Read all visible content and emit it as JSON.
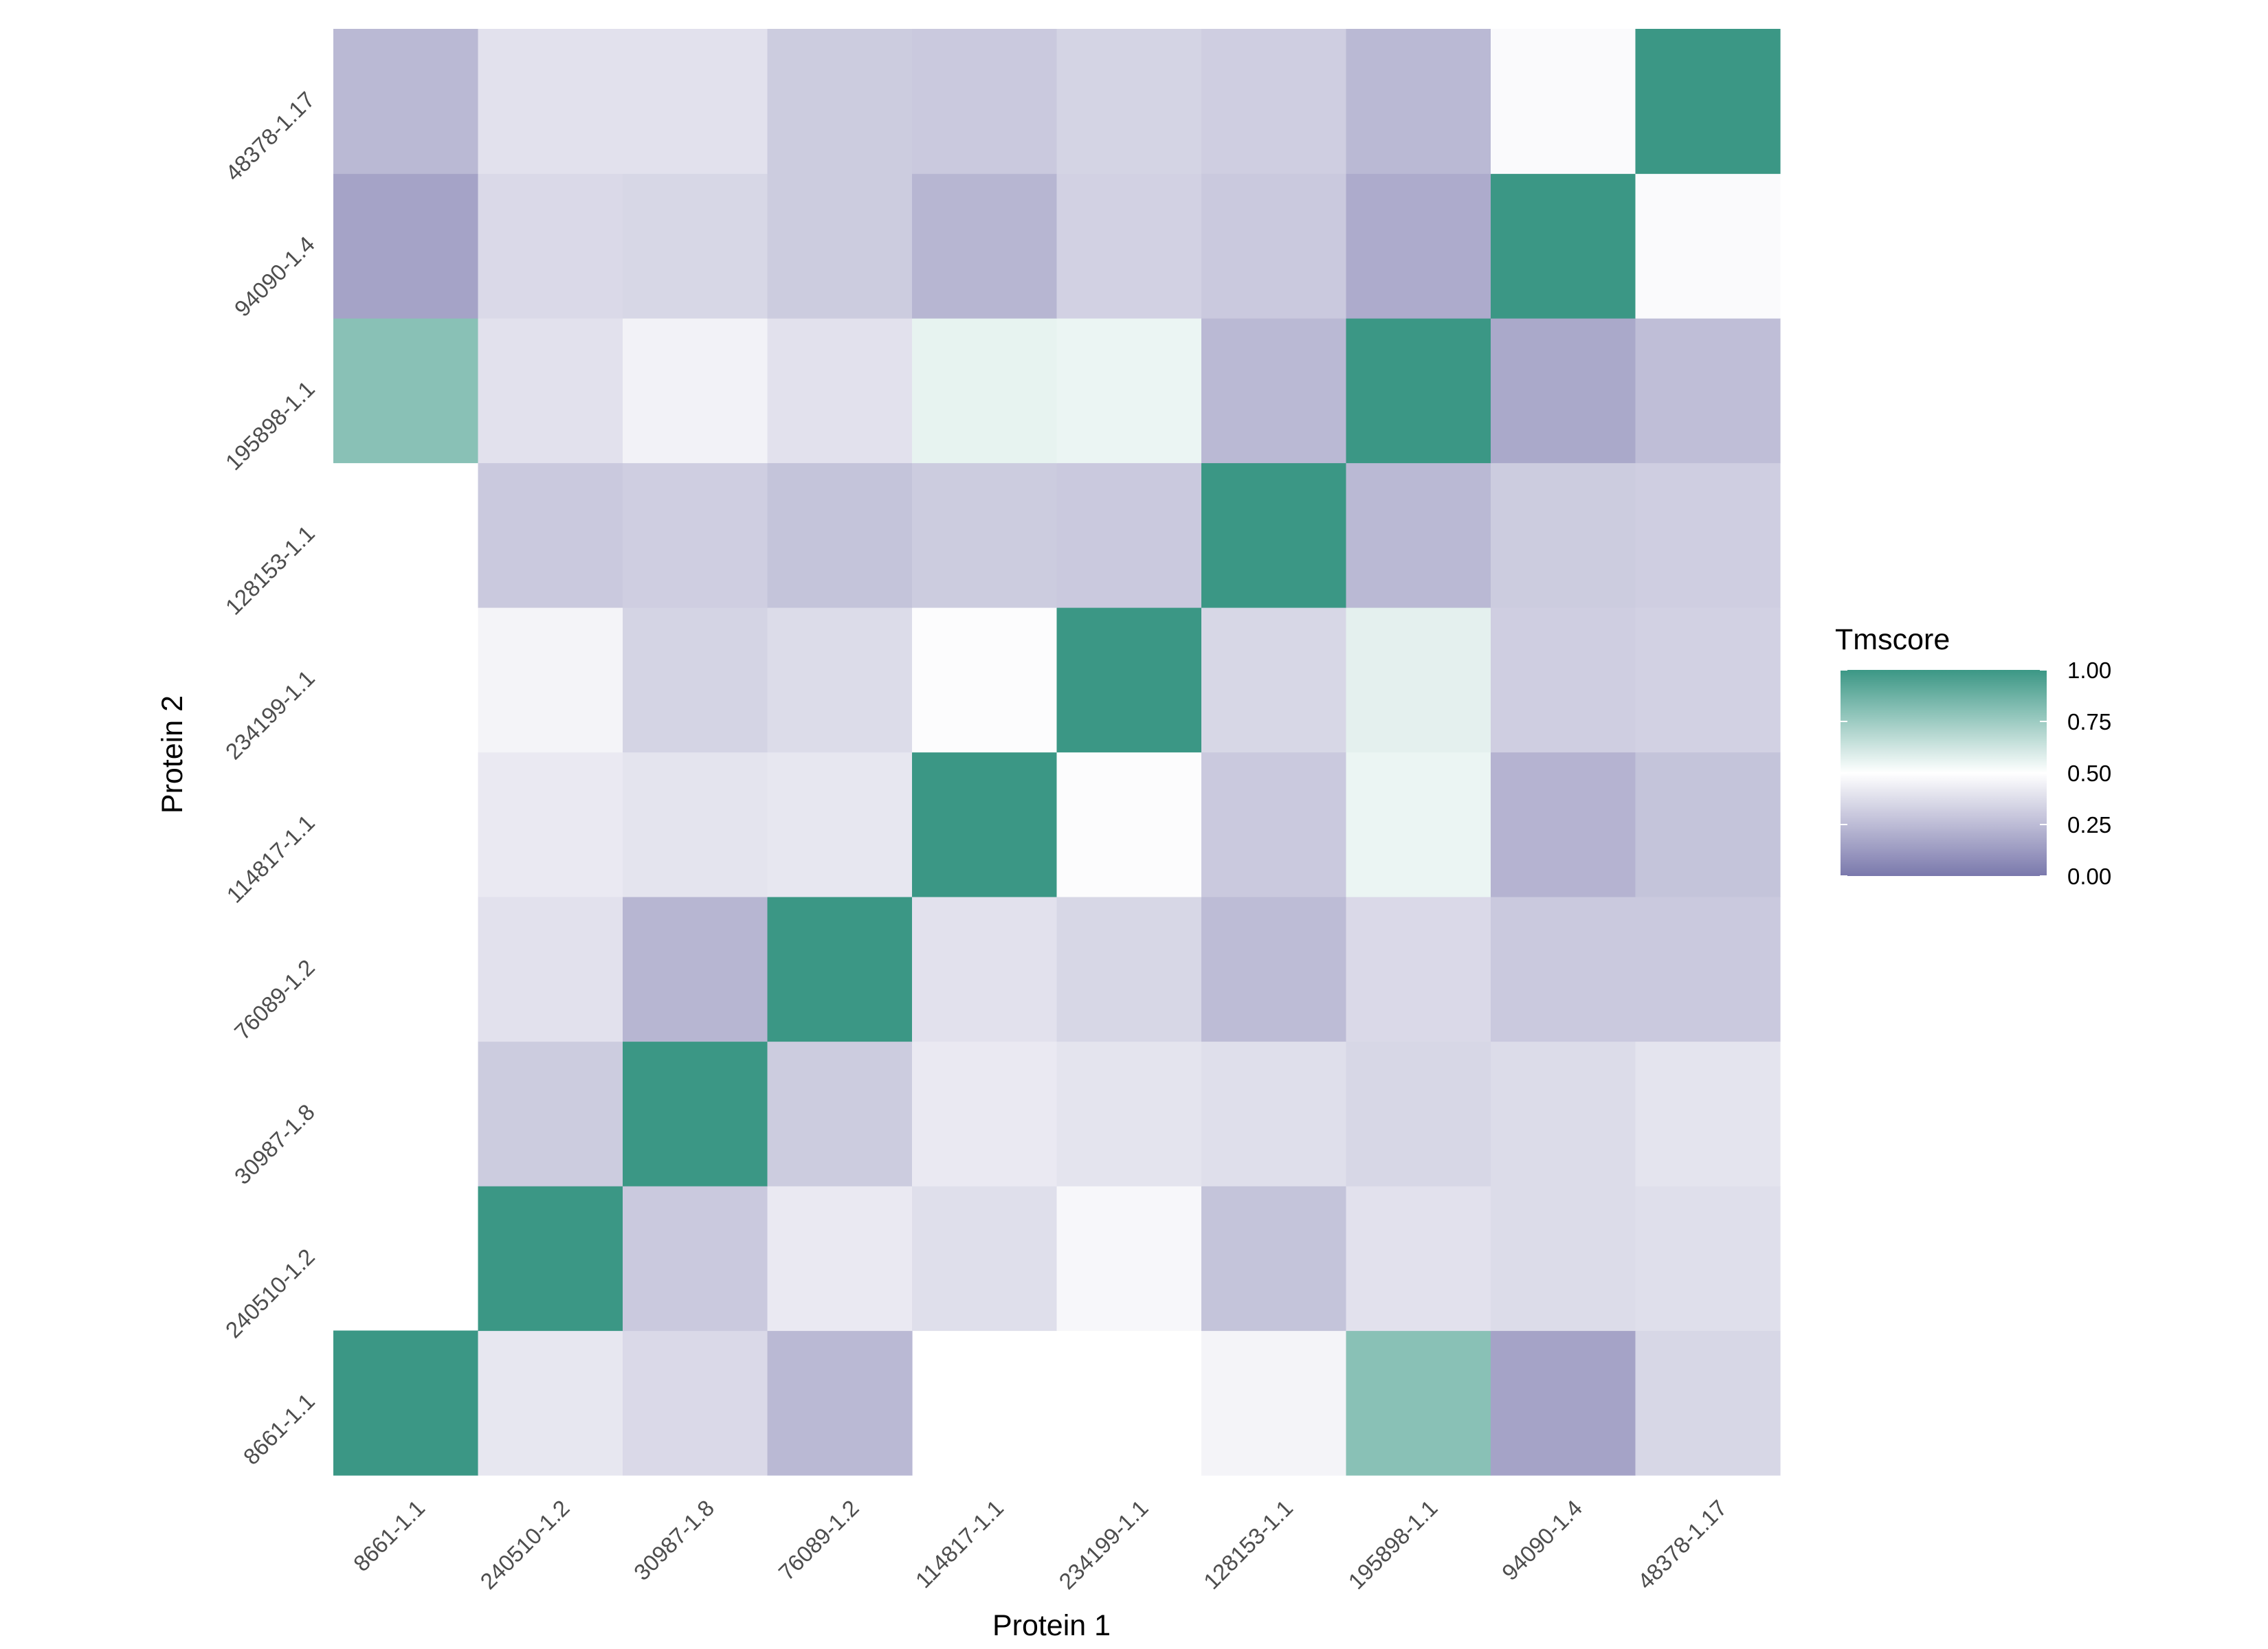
{
  "chart_data": {
    "type": "heatmap",
    "xlabel": "Protein 1",
    "ylabel": "Protein 2",
    "x_categories": [
      "8661-1.1",
      "240510-1.2",
      "30987-1.8",
      "76089-1.2",
      "114817-1.1",
      "234199-1.1",
      "128153-1.1",
      "195898-1.1",
      "94090-1.4",
      "48378-1.17"
    ],
    "y_categories": [
      "8661-1.1",
      "240510-1.2",
      "30987-1.8",
      "76089-1.2",
      "114817-1.1",
      "234199-1.1",
      "128153-1.1",
      "195898-1.1",
      "94090-1.4",
      "48378-1.17"
    ],
    "values": [
      [
        1.0,
        0.41,
        0.36,
        0.24,
        null,
        null,
        0.46,
        0.8,
        0.16,
        0.35
      ],
      [
        null,
        1.0,
        0.3,
        0.42,
        0.38,
        0.47,
        0.28,
        0.39,
        0.37,
        0.38
      ],
      [
        null,
        0.31,
        1.0,
        0.31,
        0.42,
        0.4,
        0.38,
        0.35,
        0.37,
        0.4
      ],
      [
        null,
        0.39,
        0.23,
        1.0,
        0.39,
        0.35,
        0.25,
        0.36,
        0.3,
        0.3
      ],
      [
        null,
        0.42,
        0.4,
        0.41,
        1.0,
        0.49,
        0.3,
        0.55,
        0.22,
        0.28
      ],
      [
        null,
        0.46,
        0.34,
        0.37,
        0.49,
        1.0,
        0.35,
        0.57,
        0.32,
        0.33
      ],
      [
        null,
        0.3,
        0.32,
        0.28,
        0.31,
        0.3,
        1.0,
        0.24,
        0.31,
        0.32
      ],
      [
        0.8,
        0.39,
        0.45,
        0.39,
        0.56,
        0.55,
        0.24,
        1.0,
        0.18,
        0.26
      ],
      [
        0.16,
        0.36,
        0.35,
        0.31,
        0.23,
        0.33,
        0.3,
        0.19,
        1.0,
        0.48
      ],
      [
        0.24,
        0.39,
        0.39,
        0.31,
        0.3,
        0.34,
        0.32,
        0.24,
        0.48,
        1.0
      ]
    ],
    "legend": {
      "title": "Tmscore",
      "ticks": [
        1.0,
        0.75,
        0.5,
        0.25,
        0.0
      ],
      "tick_labels": [
        "1.00",
        "0.75",
        "0.50",
        "0.25",
        "0.00"
      ],
      "range": [
        0,
        1
      ],
      "position": "right"
    },
    "colors": {
      "low": "#7a78ac",
      "mid": "#ffffff",
      "high": "#3b9785"
    },
    "grid": false
  }
}
